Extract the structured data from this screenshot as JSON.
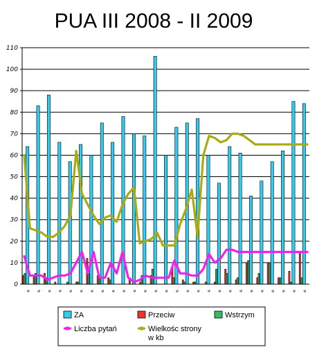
{
  "chart_data": {
    "type": "bar",
    "title": "PUA III 2008 - II 2009",
    "xlabel": "",
    "ylabel": "",
    "ylim": [
      0,
      110
    ],
    "yticks": [
      0,
      10,
      20,
      30,
      40,
      50,
      60,
      70,
      80,
      90,
      100,
      110
    ],
    "grid": true,
    "legend_position": "bottom",
    "categories": [
      "a",
      "a",
      "a",
      "a",
      "a",
      "a",
      "a",
      "a",
      "a",
      "a",
      "a",
      "a",
      "a",
      "a",
      "a",
      "a",
      "a",
      "a",
      "a",
      "a",
      "a",
      "a",
      "a",
      "a",
      "a",
      "a",
      "a",
      "a",
      "a",
      "a",
      "a",
      "a",
      "a",
      "a",
      "a",
      "a",
      "a",
      "a",
      "a",
      "a",
      "a",
      "a",
      "a",
      "a",
      "a",
      "a",
      "a",
      "a",
      "a",
      "a"
    ],
    "bar_series": [
      {
        "name": "ZA",
        "color": "#33ccee",
        "values": [
          64,
          83,
          88,
          66,
          57,
          65,
          60,
          75,
          66,
          78,
          70,
          69,
          106,
          60,
          73,
          75,
          77,
          60,
          47,
          64,
          61,
          41,
          48,
          57,
          62,
          85,
          84,
          0,
          0,
          0,
          0,
          0,
          0,
          0,
          0,
          0,
          0,
          0,
          0,
          0,
          0,
          0,
          0,
          0,
          0,
          0,
          0,
          0,
          0,
          0
        ]
      },
      {
        "name": "Przeciw",
        "color": "#ee3333",
        "values": [
          4,
          4,
          5,
          1,
          0,
          1,
          12,
          4,
          3,
          0,
          3,
          1,
          4,
          0,
          8,
          2,
          1,
          0,
          1,
          7,
          2,
          10,
          3,
          10,
          3,
          6,
          15,
          2,
          0,
          0,
          0,
          0,
          0,
          0,
          0,
          0,
          0,
          0,
          0,
          0,
          0,
          0,
          0,
          0,
          0,
          0,
          0,
          0,
          0,
          0
        ]
      },
      {
        "name": "Wstrzym",
        "color": "#33bb66",
        "values": [
          5,
          5,
          3,
          0,
          1,
          1,
          5,
          3,
          2,
          0,
          0,
          4,
          7,
          0,
          3,
          1,
          1,
          1,
          7,
          5,
          3,
          11,
          5,
          10,
          3,
          1,
          3,
          1,
          0,
          0,
          0,
          0,
          0,
          0,
          0,
          0,
          0,
          0,
          0,
          0,
          0,
          0,
          0,
          0,
          0,
          0,
          0,
          0,
          0,
          0
        ]
      }
    ],
    "line_series": [
      {
        "name": "Liczba pytań",
        "color": "#ee22ee",
        "values": [
          13,
          4,
          4,
          4,
          2,
          3,
          4,
          4,
          5,
          10,
          15,
          5,
          15,
          3,
          3,
          10,
          5,
          15,
          3,
          1,
          2,
          4,
          3,
          3,
          3,
          3,
          11,
          5,
          5,
          4,
          4,
          7,
          14,
          10,
          12,
          16,
          16,
          15,
          15,
          15,
          15,
          15,
          15,
          15,
          15,
          15,
          15,
          15,
          15,
          15
        ]
      },
      {
        "name": "Wielkośc strony w kb",
        "color": "#aaaa11",
        "values": [
          60,
          26,
          25,
          24,
          22,
          22,
          24,
          27,
          32,
          62,
          42,
          37,
          32,
          28,
          31,
          32,
          29,
          37,
          42,
          45,
          19,
          20,
          21,
          24,
          18,
          18,
          18,
          28,
          35,
          44,
          22,
          60,
          69,
          68,
          66,
          67,
          70,
          70,
          69,
          67,
          65,
          65,
          65,
          65,
          65,
          65,
          65,
          65,
          65,
          65
        ]
      }
    ]
  },
  "legend": {
    "items": [
      {
        "label": "ZA",
        "color": "#33ccee",
        "kind": "box"
      },
      {
        "label": "Przeciw",
        "color": "#ee3333",
        "kind": "box"
      },
      {
        "label": "Wstrzym",
        "color": "#33bb66",
        "kind": "box"
      },
      {
        "label": "Liczba pytań",
        "color": "#ee22ee",
        "kind": "line"
      },
      {
        "label": "Wielkośc strony",
        "label2": "w kb",
        "color": "#aaaa11",
        "kind": "line"
      }
    ]
  }
}
